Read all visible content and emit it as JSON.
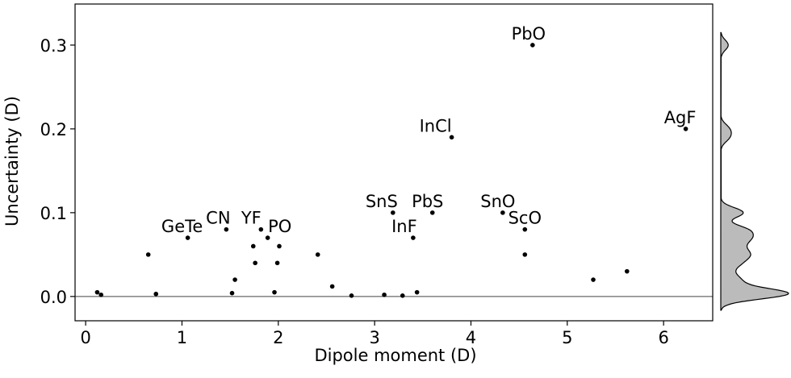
{
  "chart_data": {
    "type": "scatter",
    "x_label": "Dipole moment (D)",
    "y_label": "Uncertainty (D)",
    "xlim": [
      -0.11,
      6.51
    ],
    "ylim": [
      -0.029,
      0.349
    ],
    "xticks": [
      0,
      1,
      2,
      3,
      4,
      5,
      6
    ],
    "yticks": [
      {
        "value": 0,
        "label": "0.0"
      },
      {
        "value": 0.1,
        "label": "0.1"
      },
      {
        "value": 0.2,
        "label": "0.2"
      },
      {
        "value": 0.3,
        "label": "0.3"
      }
    ],
    "color": "#000000",
    "marginal_color": "#bbbbbb",
    "x": [
      4.64,
      6.23,
      3.8,
      3.19,
      3.6,
      4.33,
      4.56,
      3.4,
      1.06,
      1.46,
      1.82,
      1.89,
      0.65,
      1.74,
      2.01,
      1.76,
      1.99,
      2.41,
      1.55,
      4.56,
      5.27,
      5.62,
      0.12,
      0.16,
      0.73,
      1.52,
      1.96,
      2.56,
      2.76,
      3.1,
      3.29,
      3.44
    ],
    "values": [
      0.3,
      0.2,
      0.19,
      0.1,
      0.1,
      0.1,
      0.08,
      0.07,
      0.07,
      0.08,
      0.08,
      0.07,
      0.05,
      0.06,
      0.06,
      0.04,
      0.04,
      0.05,
      0.02,
      0.05,
      0.02,
      0.03,
      0.005,
      0.002,
      0.003,
      0.004,
      0.005,
      0.012,
      0.001,
      0.002,
      0.001,
      0.005
    ],
    "point_labels": [
      "PbO",
      "AgF",
      "InCl",
      "SnS",
      "PbS",
      "SnO",
      "ScO",
      "InF",
      "GeTe",
      "CN",
      "YF",
      "PO",
      null,
      null,
      null,
      null,
      null,
      null,
      null,
      null,
      null,
      null,
      null,
      null,
      null,
      null,
      null,
      null,
      null,
      null,
      null,
      null
    ]
  }
}
